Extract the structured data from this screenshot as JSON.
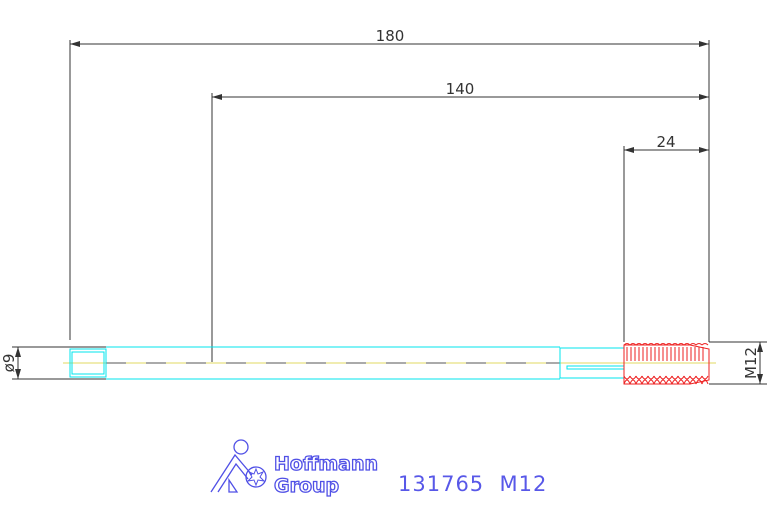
{
  "dimensions": {
    "overall_length": "180",
    "shank_length": "140",
    "thread_length": "24",
    "shank_diameter": "ø9",
    "thread_size": "M12"
  },
  "logo": {
    "line1": "Hoffmann",
    "line2": "Group"
  },
  "part_label": "131765  M12",
  "colors": {
    "dimension": "#333333",
    "outline": "#00e5ee",
    "thread": "#ee2222",
    "centerline": "#e0d860",
    "logo": "#5050e6"
  }
}
